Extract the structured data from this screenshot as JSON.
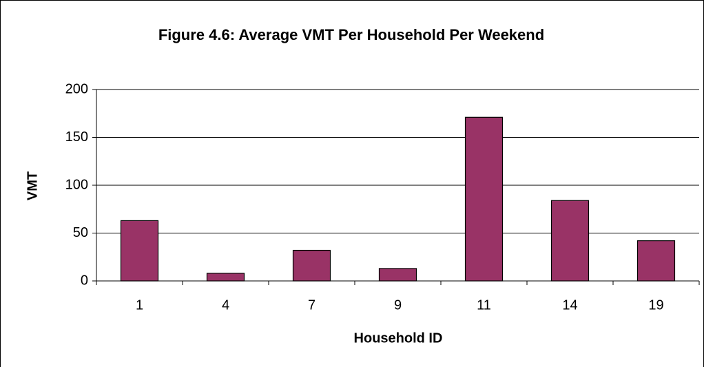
{
  "chart_data": {
    "type": "bar",
    "title": "Figure 4.6: Average VMT Per Household Per Weekend",
    "x_label": "Household ID",
    "y_label": "VMT",
    "categories": [
      "1",
      "4",
      "7",
      "9",
      "11",
      "14",
      "19"
    ],
    "values": [
      63,
      8,
      32,
      13,
      171,
      84,
      42
    ],
    "color": "#993366",
    "ylim": [
      0,
      200
    ],
    "yticks": [
      0,
      50,
      100,
      150,
      200
    ],
    "grid": true
  }
}
